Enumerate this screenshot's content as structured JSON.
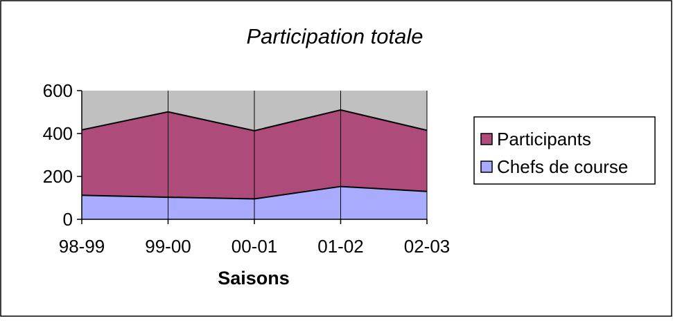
{
  "chart_data": {
    "type": "area",
    "stacked": true,
    "title": "Participation totale",
    "xlabel": "Saisons",
    "ylabel": "",
    "categories": [
      "98-99",
      "99-00",
      "00-01",
      "01-02",
      "02-03"
    ],
    "ylim": [
      0,
      600
    ],
    "yticks": [
      0,
      200,
      400,
      600
    ],
    "grid": "vertical",
    "legend_position": "right",
    "series": [
      {
        "name": "Chefs de course",
        "values": [
          112,
          103,
          95,
          153,
          130
        ],
        "color": "#a9abff"
      },
      {
        "name": "Participants",
        "values": [
          305,
          398,
          318,
          357,
          285
        ],
        "color": "#af4b7a"
      }
    ],
    "plot_background": "#c0c0c0"
  }
}
